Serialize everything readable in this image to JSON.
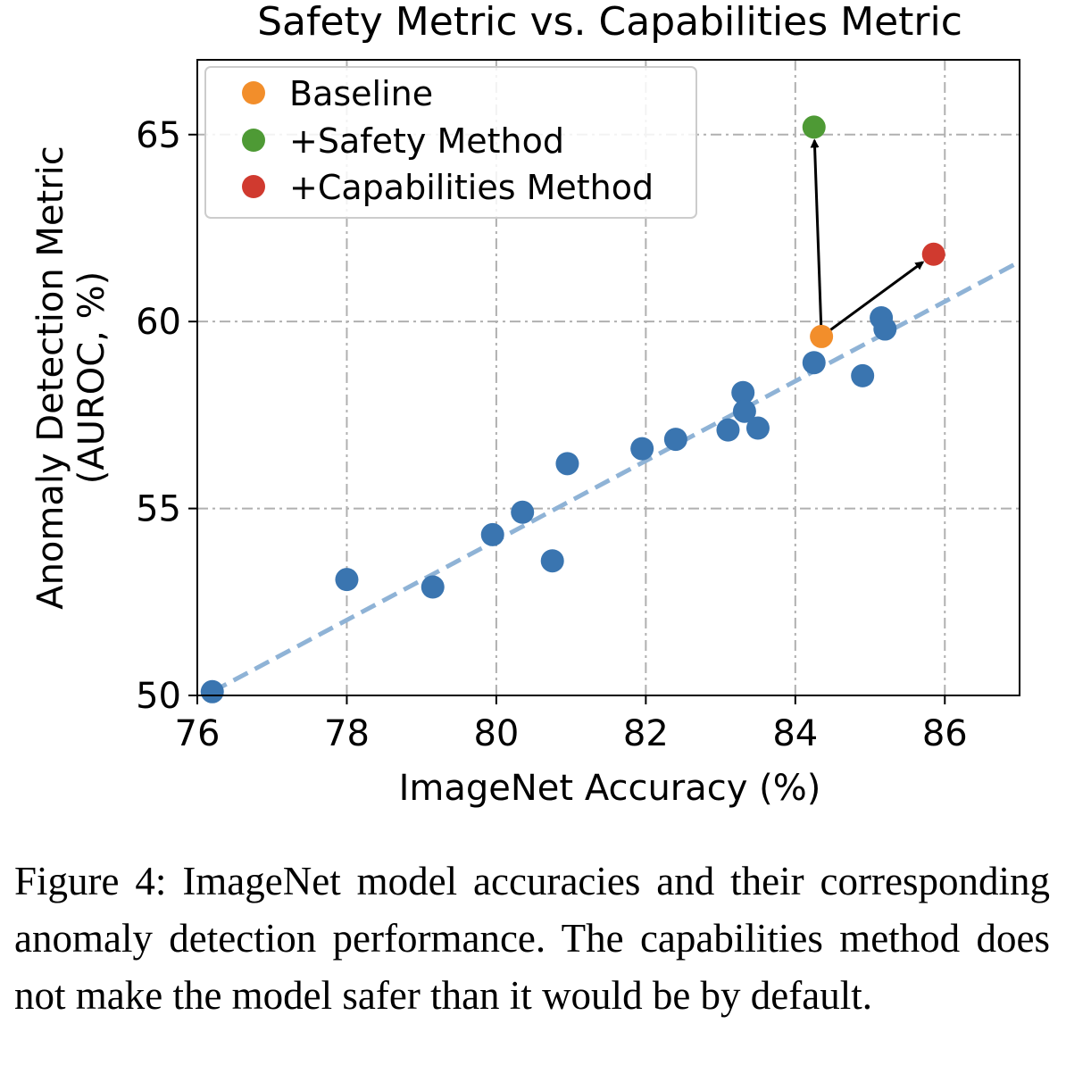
{
  "chart_data": {
    "type": "scatter",
    "title": "Safety Metric vs. Capabilities Metric",
    "xlabel": "ImageNet Accuracy (%)",
    "ylabel_lines": [
      "Anomaly Detection Metric",
      "(AUROC, %)"
    ],
    "xlim": [
      76,
      87
    ],
    "ylim": [
      50,
      67
    ],
    "xticks": [
      76,
      78,
      80,
      82,
      84,
      86
    ],
    "yticks": [
      50,
      55,
      60,
      65
    ],
    "grid": true,
    "legend_position": "top-left",
    "legend": [
      {
        "label": "Baseline",
        "color": "#f28e2b"
      },
      {
        "label": "+Safety Method",
        "color": "#4e9a35"
      },
      {
        "label": "+Capabilities Method",
        "color": "#d03a2f"
      }
    ],
    "models": {
      "color": "#3a75b0",
      "points": [
        [
          76.2,
          50.1
        ],
        [
          78.0,
          53.1
        ],
        [
          79.15,
          52.9
        ],
        [
          79.95,
          54.3
        ],
        [
          80.35,
          54.9
        ],
        [
          80.75,
          53.6
        ],
        [
          80.95,
          56.2
        ],
        [
          81.95,
          56.6
        ],
        [
          82.4,
          56.85
        ],
        [
          83.1,
          57.1
        ],
        [
          83.3,
          58.1
        ],
        [
          83.32,
          57.6
        ],
        [
          83.5,
          57.15
        ],
        [
          84.25,
          58.9
        ],
        [
          84.9,
          58.55
        ],
        [
          85.15,
          60.1
        ],
        [
          85.2,
          59.8
        ]
      ]
    },
    "trend_line": {
      "color": "#8fb3d6",
      "style": "dashed",
      "x": [
        76.2,
        87.0
      ],
      "y": [
        50.1,
        61.6
      ]
    },
    "baseline": {
      "x": 84.35,
      "y": 59.6
    },
    "safety_method": {
      "x": 84.25,
      "y": 65.2
    },
    "capabilities_method": {
      "x": 85.85,
      "y": 61.8
    }
  },
  "caption": "Figure 4: ImageNet model accuracies and their corresponding anomaly detection performance. The capabilities method does not make the model safer than it would be by default."
}
